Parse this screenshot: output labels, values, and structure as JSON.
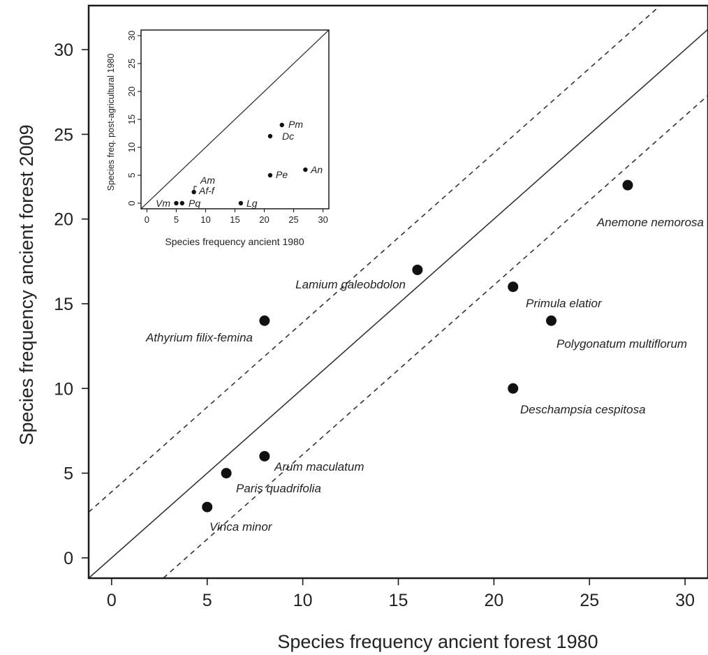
{
  "chart_data": [
    {
      "type": "scatter",
      "xlabel": "Species frequency ancient forest 1980",
      "ylabel": "Species frequency ancient forest 2009",
      "xlim": [
        -1.2,
        31.2
      ],
      "ylim": [
        -1.2,
        32.6
      ],
      "xticks": [
        0,
        5,
        10,
        15,
        20,
        25,
        30
      ],
      "yticks": [
        0,
        5,
        10,
        15,
        20,
        25,
        30
      ],
      "grid": false,
      "reference_lines": [
        {
          "style": "solid",
          "slope": 1,
          "intercept": 0
        },
        {
          "style": "dashed",
          "slope": 1,
          "intercept": 3.9
        },
        {
          "style": "dashed",
          "slope": 1,
          "intercept": -3.9
        }
      ],
      "points": [
        {
          "label": "Vinca minor",
          "x": 5,
          "y": 3
        },
        {
          "label": "Paris quadrifolia",
          "x": 6,
          "y": 5
        },
        {
          "label": "Arum maculatum",
          "x": 8,
          "y": 6
        },
        {
          "label": "Athyrium filix-femina",
          "x": 8,
          "y": 14
        },
        {
          "label": "Lamium galeobdolon",
          "x": 16,
          "y": 17
        },
        {
          "label": "Primula elatior",
          "x": 21,
          "y": 16
        },
        {
          "label": "Polygonatum multiflorum",
          "x": 23,
          "y": 14
        },
        {
          "label": "Deschampsia cespitosa",
          "x": 21,
          "y": 10
        },
        {
          "label": "Anemone nemorosa",
          "x": 27,
          "y": 22
        }
      ]
    },
    {
      "type": "scatter",
      "position": "inset-top-left",
      "xlabel": "Species frequency ancient 1980",
      "ylabel": "Species freq. post-agricultural 1980",
      "xlim": [
        -1,
        31
      ],
      "ylim": [
        -1,
        31
      ],
      "xticks": [
        0,
        5,
        10,
        15,
        20,
        25,
        30
      ],
      "yticks": [
        0,
        5,
        10,
        15,
        20,
        25,
        30
      ],
      "grid": false,
      "reference_lines": [
        {
          "style": "solid",
          "slope": 1,
          "intercept": 0
        }
      ],
      "points": [
        {
          "label": "Vm",
          "x": 5,
          "y": 0
        },
        {
          "label": "Pq",
          "x": 6,
          "y": 0
        },
        {
          "label": "Af-f",
          "x": 8,
          "y": 2
        },
        {
          "label": "Am",
          "x": 8,
          "y": 2
        },
        {
          "label": "Lg",
          "x": 16,
          "y": 0
        },
        {
          "label": "Pe",
          "x": 21,
          "y": 5
        },
        {
          "label": "Dc",
          "x": 21,
          "y": 12
        },
        {
          "label": "Pm",
          "x": 23,
          "y": 14
        },
        {
          "label": "An",
          "x": 27,
          "y": 6
        }
      ]
    }
  ]
}
